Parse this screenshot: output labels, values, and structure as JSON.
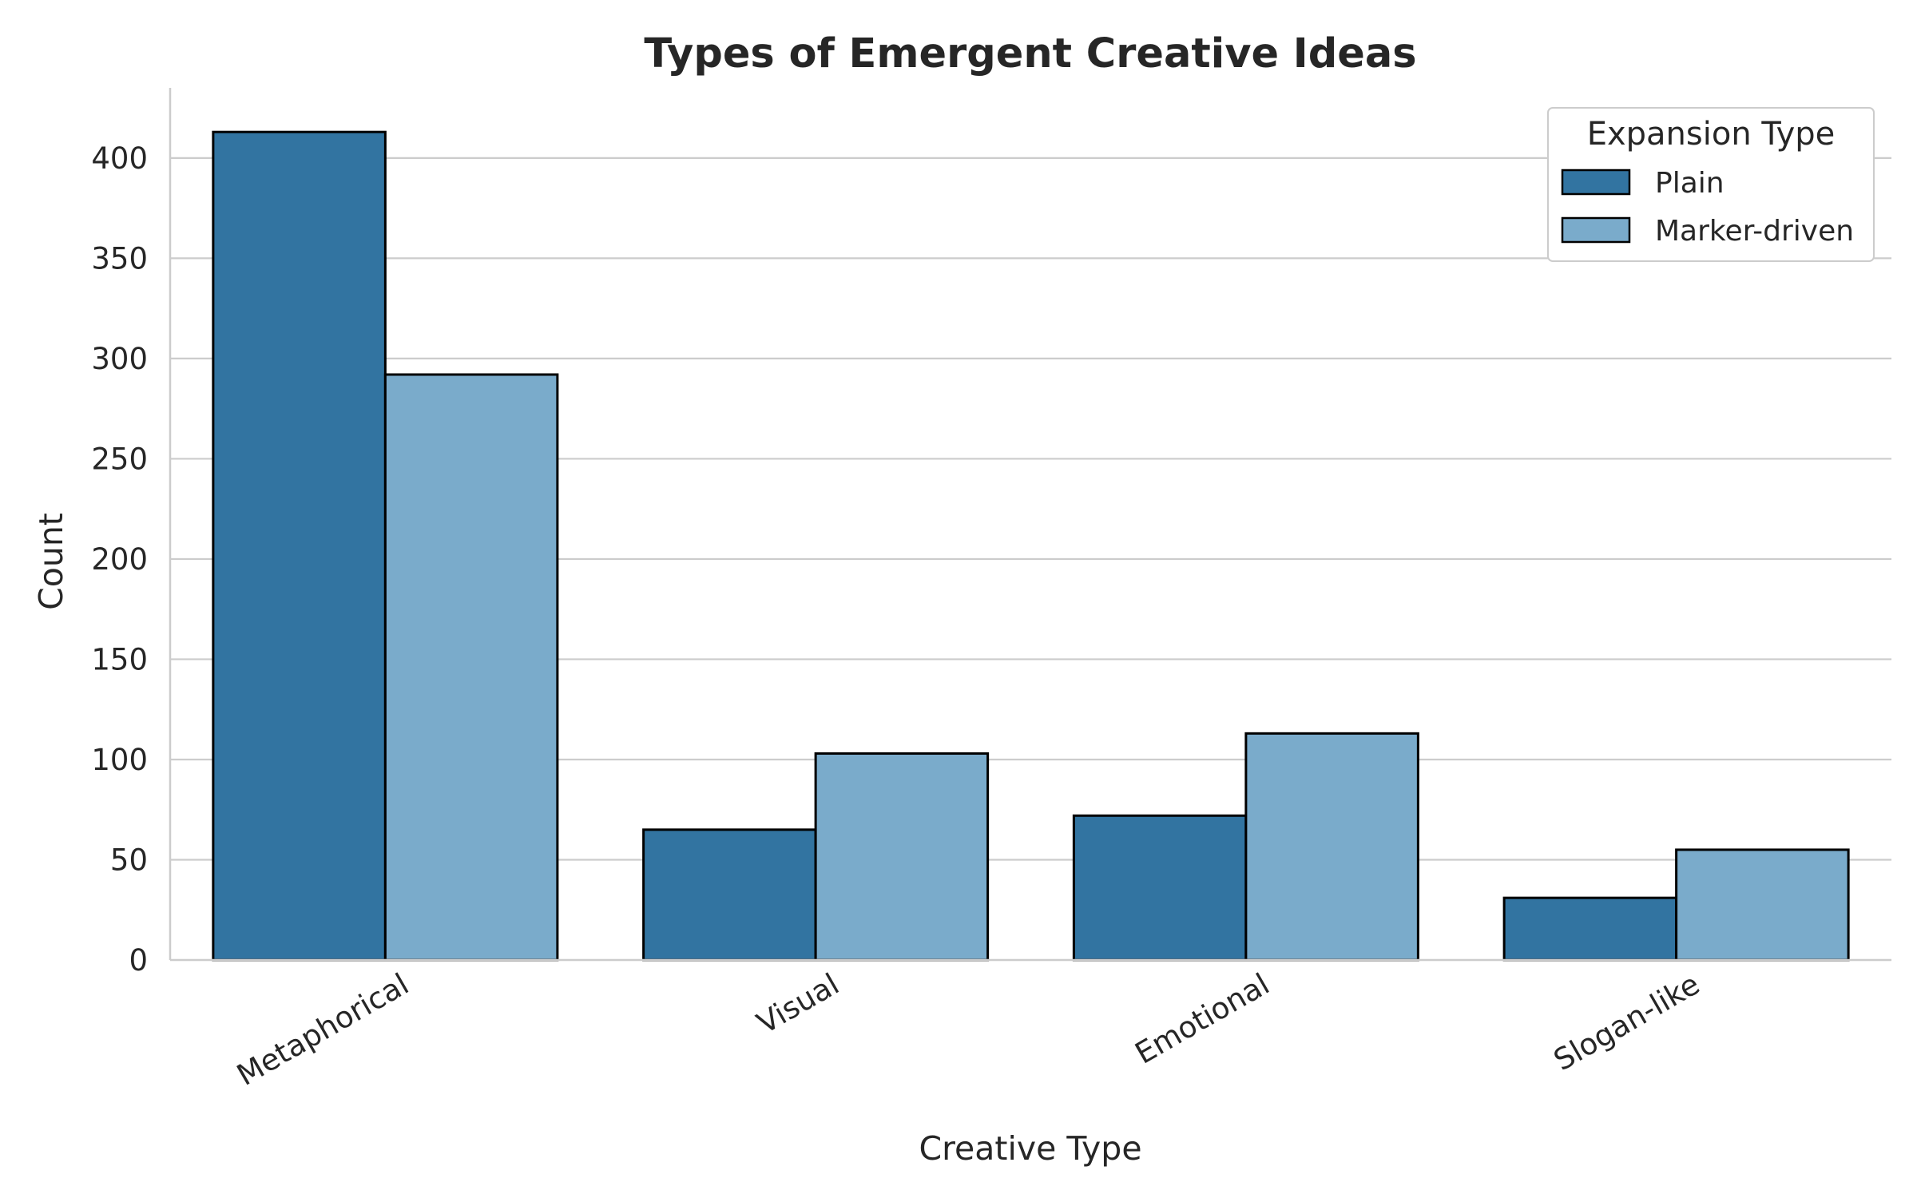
{
  "chart_data": {
    "type": "bar",
    "title": "Types of Emergent Creative Ideas",
    "xlabel": "Creative Type",
    "ylabel": "Count",
    "categories": [
      "Metaphorical",
      "Visual",
      "Emotional",
      "Slogan-like"
    ],
    "series": [
      {
        "name": "Plain",
        "values": [
          413,
          65,
          72,
          31
        ],
        "color": "#3274a1"
      },
      {
        "name": "Marker-driven",
        "values": [
          292,
          103,
          113,
          55
        ],
        "color": "#7aabcb"
      }
    ],
    "ylim": [
      0,
      435
    ],
    "yticks": [
      0,
      50,
      100,
      150,
      200,
      250,
      300,
      350,
      400
    ],
    "grid": "horizontal",
    "legend": {
      "title": "Expansion Type",
      "position": "top-right"
    },
    "edge_color": "#000000",
    "grid_color": "#cccccc"
  }
}
